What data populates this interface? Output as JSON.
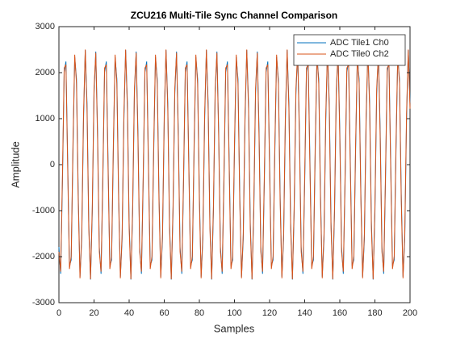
{
  "chart_data": {
    "type": "line",
    "title": "ZCU216 Multi-Tile Sync Channel Comparison",
    "x_label": "Samples",
    "y_label": "Amplitude",
    "xlim": [
      0,
      200
    ],
    "ylim": [
      -3000,
      3000
    ],
    "xticks": [
      0,
      20,
      40,
      60,
      80,
      100,
      120,
      140,
      160,
      180,
      200
    ],
    "yticks": [
      -3000,
      -2000,
      -1000,
      0,
      1000,
      2000,
      3000
    ],
    "legend": "upper right",
    "x": [
      0,
      1,
      2,
      3,
      4,
      5,
      6,
      7,
      8,
      9,
      10,
      11,
      12,
      13,
      14,
      15,
      16,
      17,
      18,
      19,
      20,
      21,
      22,
      23,
      24,
      25,
      26,
      27,
      28,
      29,
      30,
      31,
      32,
      33,
      34,
      35,
      36,
      37,
      38,
      39,
      40,
      41,
      42,
      43,
      44,
      45,
      46,
      47,
      48,
      49,
      50,
      51,
      52,
      53,
      54,
      55,
      56,
      57,
      58,
      59,
      60,
      61,
      62,
      63,
      64,
      65,
      66,
      67,
      68,
      69,
      70,
      71,
      72,
      73,
      74,
      75,
      76,
      77,
      78,
      79,
      80,
      81,
      82,
      83,
      84,
      85,
      86,
      87,
      88,
      89,
      90,
      91,
      92,
      93,
      94,
      95,
      96,
      97,
      98,
      99,
      100,
      101,
      102,
      103,
      104,
      105,
      106,
      107,
      108,
      109,
      110,
      111,
      112,
      113,
      114,
      115,
      116,
      117,
      118,
      119,
      120,
      121,
      122,
      123,
      124,
      125,
      126,
      127,
      128,
      129,
      130,
      131,
      132,
      133,
      134,
      135,
      136,
      137,
      138,
      139,
      140,
      141,
      142,
      143,
      144,
      145,
      146,
      147,
      148,
      149,
      150,
      151,
      152,
      153,
      154,
      155,
      156,
      157,
      158,
      159,
      160,
      161,
      162,
      163,
      164,
      165,
      166,
      167,
      168,
      169,
      170,
      171,
      172,
      173,
      174,
      175,
      176,
      177,
      178,
      179,
      180,
      181,
      182,
      183,
      184,
      185,
      186,
      187,
      188,
      189,
      190,
      191,
      192,
      193,
      194,
      195,
      196,
      197,
      198,
      199,
      200
    ],
    "series": [
      {
        "name": "ADC Tile1 Ch0",
        "color": "#0072bd",
        "values": [
          -1790,
          -2373,
          -392,
          2012,
          2242,
          52,
          -2197,
          -2072,
          289,
          2337,
          1862,
          -625,
          -2437,
          -1618,
          948,
          2490,
          1343,
          -1256,
          -2498,
          -1042,
          1536,
          2458,
          730,
          -1790,
          -2373,
          -392,
          2012,
          2242,
          52,
          -2197,
          -2072,
          289,
          2337,
          1862,
          -625,
          -2437,
          -1618,
          948,
          2490,
          1343,
          -1256,
          -2498,
          -1042,
          1536,
          2458,
          730,
          -1790,
          -2373,
          -392,
          2012,
          2242,
          52,
          -2197,
          -2072,
          289,
          2337,
          1862,
          -625,
          -2437,
          -1618,
          948,
          2490,
          1343,
          -1256,
          -2498,
          -1042,
          1536,
          2458,
          730,
          -1790,
          -2373,
          -392,
          2012,
          2242,
          52,
          -2197,
          -2072,
          289,
          2337,
          1862,
          -625,
          -2437,
          -1618,
          948,
          2490,
          1343,
          -1256,
          -2498,
          -1042,
          1536,
          2458,
          730,
          -1790,
          -2373,
          -392,
          2012,
          2242,
          52,
          -2197,
          -2072,
          289,
          2337,
          1862,
          -625,
          -2437,
          -1618,
          948,
          2490,
          1343,
          -1256,
          -2498,
          -1042,
          1536,
          2458,
          730,
          -1790,
          -2373,
          -392,
          2012,
          2242,
          52,
          -2197,
          -2072,
          289,
          2337,
          1862,
          -625,
          -2437,
          -1618,
          948,
          2490,
          1343,
          -1256,
          -2498,
          -1042,
          1536,
          2458,
          730,
          -1790,
          -2373,
          -392,
          2012,
          2242,
          52,
          -2197,
          -2072,
          289,
          2337,
          1862,
          -625,
          -2437,
          -1618,
          948,
          2490,
          1343,
          -1256,
          -2498,
          -1042,
          1536,
          2458,
          730,
          -1790,
          -2373,
          -392,
          2012,
          2242,
          52,
          -2197,
          -2072,
          289,
          2337,
          1862,
          -625,
          -2437,
          -1618,
          948,
          2490,
          1343,
          -1256,
          -2498,
          -1042,
          1536,
          2458,
          730,
          -1790,
          -2373,
          -392,
          2012,
          2242,
          52,
          -2197,
          -2072,
          289,
          2337,
          1862,
          -625,
          -2437,
          -1618,
          948,
          2490,
          1343
        ]
      },
      {
        "name": "ADC Tile0 Ch2",
        "color": "#d95319",
        "values": [
          -1895,
          -2326,
          -244,
          2101,
          2176,
          -98,
          -2268,
          -1988,
          438,
          2390,
          1762,
          -770,
          -2470,
          -1504,
          1087,
          2503,
          1216,
          -1386,
          -2491,
          -906,
          1654,
          2431,
          586,
          -1895,
          -2326,
          -244,
          2101,
          2176,
          -98,
          -2268,
          -1988,
          438,
          2390,
          1762,
          -770,
          -2470,
          -1504,
          1087,
          2503,
          1216,
          -1386,
          -2491,
          -906,
          1654,
          2431,
          586,
          -1895,
          -2326,
          -244,
          2101,
          2176,
          -98,
          -2268,
          -1988,
          438,
          2390,
          1762,
          -770,
          -2470,
          -1504,
          1087,
          2503,
          1216,
          -1386,
          -2491,
          -906,
          1654,
          2431,
          586,
          -1895,
          -2326,
          -244,
          2101,
          2176,
          -98,
          -2268,
          -1988,
          438,
          2390,
          1762,
          -770,
          -2470,
          -1504,
          1087,
          2503,
          1216,
          -1386,
          -2491,
          -906,
          1654,
          2431,
          586,
          -1895,
          -2326,
          -244,
          2101,
          2176,
          -98,
          -2268,
          -1988,
          438,
          2390,
          1762,
          -770,
          -2470,
          -1504,
          1087,
          2503,
          1216,
          -1386,
          -2491,
          -906,
          1654,
          2431,
          586,
          -1895,
          -2326,
          -244,
          2101,
          2176,
          -98,
          -2268,
          -1988,
          438,
          2390,
          1762,
          -770,
          -2470,
          -1504,
          1087,
          2503,
          1216,
          -1386,
          -2491,
          -906,
          1654,
          2431,
          586,
          -1895,
          -2326,
          -244,
          2101,
          2176,
          -98,
          -2268,
          -1988,
          438,
          2390,
          1762,
          -770,
          -2470,
          -1504,
          1087,
          2503,
          1216,
          -1386,
          -2491,
          -906,
          1654,
          2431,
          586,
          -1895,
          -2326,
          -244,
          2101,
          2176,
          -98,
          -2268,
          -1988,
          438,
          2390,
          1762,
          -770,
          -2470,
          -1504,
          1087,
          2503,
          1216,
          -1386,
          -2491,
          -906,
          1654,
          2431,
          586,
          -1895,
          -2326,
          -244,
          2101,
          2176,
          -98,
          -2268,
          -1988,
          438,
          2390,
          1762,
          -770,
          -2470,
          -1504,
          1087,
          2503,
          1216
        ]
      }
    ]
  }
}
